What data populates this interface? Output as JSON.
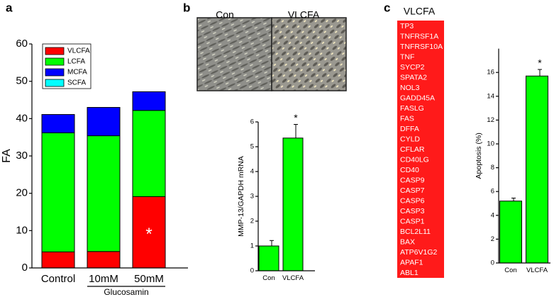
{
  "panel_labels": [
    "a",
    "b",
    "c"
  ],
  "chart_data": [
    {
      "type": "bar",
      "stacked": true,
      "ylabel": "FA",
      "categories": [
        "Control",
        "10mM",
        "50mM"
      ],
      "group_label": "Glucosamin",
      "series": [
        {
          "name": "VLCFA",
          "color": "#ff0000",
          "values": [
            4.3,
            4.4,
            19.1
          ]
        },
        {
          "name": "LCFA",
          "color": "#00ff00",
          "values": [
            31.9,
            31.0,
            23.1
          ]
        },
        {
          "name": "MCFA",
          "color": "#0000ff",
          "values": [
            4.9,
            7.6,
            5.0
          ]
        },
        {
          "name": "SCFA",
          "color": "#00ffff",
          "values": [
            0,
            0,
            0
          ]
        }
      ],
      "ylim": [
        0,
        60
      ],
      "yticks": [
        0,
        10,
        20,
        30,
        40,
        50,
        60
      ],
      "annotation": {
        "text": "*",
        "index": 2
      }
    },
    {
      "type": "bar",
      "ylabel": "MMP-13/GAPDH mRNA",
      "color": "#00ff00",
      "categories": [
        "Con",
        "VLCFA"
      ],
      "values": [
        1.0,
        5.35
      ],
      "errors": [
        0.22,
        0.55
      ],
      "ylim": [
        0,
        6
      ],
      "yticks": [
        0,
        1,
        2,
        3,
        4,
        5,
        6
      ],
      "annotation": {
        "text": "*",
        "index": 1
      }
    },
    {
      "type": "bar",
      "ylabel": "Apoptosis  (%)",
      "color": "#00ff00",
      "categories": [
        "Con",
        "VLCFA"
      ],
      "values": [
        5.2,
        15.7
      ],
      "errors": [
        0.25,
        0.55
      ],
      "ylim": [
        0,
        18
      ],
      "yticks": [
        0,
        2,
        4,
        6,
        8,
        10,
        12,
        14,
        16
      ],
      "annotation": {
        "text": "*",
        "index": 1
      }
    }
  ],
  "images": {
    "labels": [
      "Con",
      "VLCFA"
    ]
  },
  "gene_list": {
    "title": "VLCFA",
    "genes": [
      "TP3",
      "TNFRSF1A",
      "TNFRSF10A",
      "TNF",
      "SYCP2",
      "SPATA2",
      "NOL3",
      "GADD45A",
      "FASLG",
      "FAS",
      "DFFA",
      "CYLD",
      "CFLAR",
      "CD40LG",
      "CD40",
      "CASP9",
      "CASP7",
      "CASP6",
      "CASP3",
      "CASP1",
      "BCL2L11",
      "BAX",
      "ATP6V1G2",
      "APAF1",
      "ABL1"
    ]
  }
}
